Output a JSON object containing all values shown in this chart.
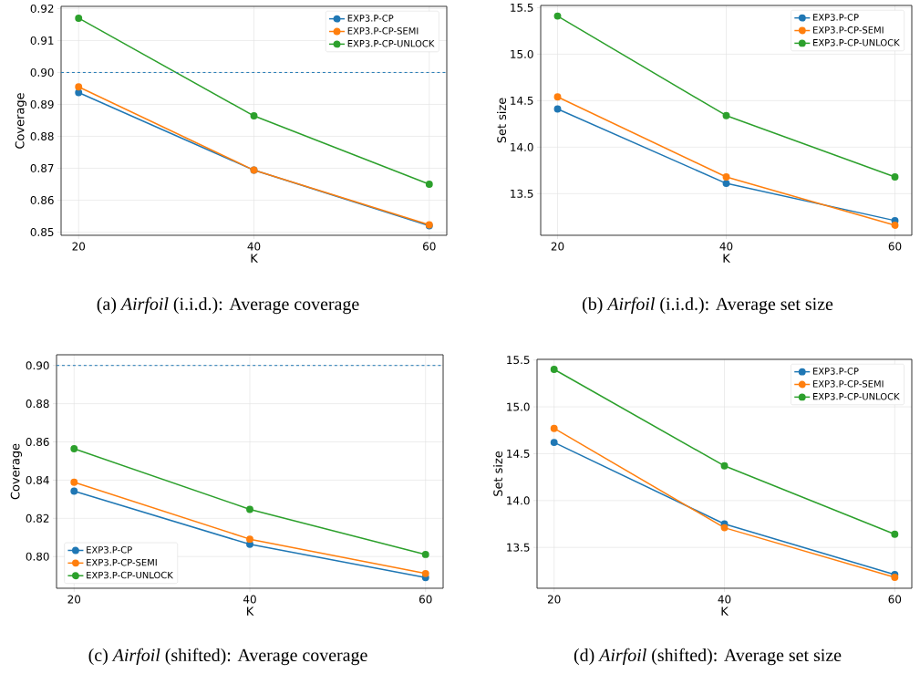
{
  "chart_data": [
    {
      "type": "line",
      "xlabel": "K",
      "ylabel": "Coverage",
      "x": [
        20,
        40,
        60
      ],
      "xlim": [
        18,
        62
      ],
      "xticks": [
        20,
        40,
        60
      ],
      "ylim": [
        0.849,
        0.9207
      ],
      "yticks": [
        0.85,
        0.86,
        0.87,
        0.88,
        0.89,
        {
          "value": 0.9,
          "label": "0.90"
        },
        0.91,
        0.92
      ],
      "grid": true,
      "legend": "top right",
      "marker": "circle",
      "line_style": "solid",
      "series": [
        {
          "name": "EXP3.P-CP",
          "color": "#1f77b4",
          "values": [
            0.8937,
            0.8694,
            0.852
          ]
        },
        {
          "name": "EXP3.P-CP-SEMI",
          "color": "#ff7f0e",
          "values": [
            0.8955,
            0.8694,
            0.8523
          ]
        },
        {
          "name": "EXP3.P-CP-UNLOCK",
          "color": "#2ca02c",
          "values": [
            0.917,
            0.8864,
            0.865
          ]
        }
      ],
      "ref_lines": [
        {
          "axis": "y",
          "value": 0.9,
          "color": "#1f77b4",
          "line_style": "dashed"
        }
      ],
      "annotations": [
        "(a) *Airfoil* (i.i.d.): Average coverage"
      ]
    },
    {
      "type": "line",
      "xlabel": "K",
      "ylabel": "Set size",
      "x": [
        20,
        40,
        60
      ],
      "xlim": [
        18,
        62
      ],
      "xticks": [
        20,
        40,
        60
      ],
      "ylim": [
        13.052,
        15.524
      ],
      "yticks": [
        {
          "value": 13.5,
          "label": "13.5"
        },
        {
          "value": 14,
          "label": "14.0"
        },
        {
          "value": 14.5,
          "label": "14.5"
        },
        {
          "value": 15,
          "label": "15.0"
        },
        {
          "value": 15.5,
          "label": "15.5"
        }
      ],
      "grid": true,
      "legend": "top right",
      "marker": "circle",
      "line_style": "solid",
      "series": [
        {
          "name": "EXP3.P-CP",
          "color": "#1f77b4",
          "values": [
            14.41,
            13.61,
            13.21
          ]
        },
        {
          "name": "EXP3.P-CP-SEMI",
          "color": "#ff7f0e",
          "values": [
            14.54,
            13.68,
            13.16
          ]
        },
        {
          "name": "EXP3.P-CP-UNLOCK",
          "color": "#2ca02c",
          "values": [
            15.41,
            14.34,
            13.68
          ]
        }
      ],
      "annotations": [
        "(b) *Airfoil* (i.i.d.): Average set size"
      ]
    },
    {
      "type": "line",
      "xlabel": "K",
      "ylabel": "Coverage",
      "x": [
        20,
        40,
        60
      ],
      "xlim": [
        18,
        62
      ],
      "xticks": [
        20,
        40,
        60
      ],
      "ylim": [
        0.7834,
        0.9056
      ],
      "yticks": [
        {
          "value": 0.8,
          "label": "0.80"
        },
        0.82,
        0.84,
        0.86,
        0.88,
        {
          "value": 0.9,
          "label": "0.90"
        }
      ],
      "grid": true,
      "legend": "bottom left",
      "marker": "circle",
      "line_style": "solid",
      "series": [
        {
          "name": "EXP3.P-CP",
          "color": "#1f77b4",
          "values": [
            0.8342,
            0.8064,
            0.789
          ]
        },
        {
          "name": "EXP3.P-CP-SEMI",
          "color": "#ff7f0e",
          "values": [
            0.8389,
            0.8091,
            0.7911
          ]
        },
        {
          "name": "EXP3.P-CP-UNLOCK",
          "color": "#2ca02c",
          "values": [
            0.8564,
            0.8247,
            0.8011
          ]
        }
      ],
      "ref_lines": [
        {
          "axis": "y",
          "value": 0.9,
          "color": "#1f77b4",
          "line_style": "dashed"
        }
      ],
      "annotations": [
        "(c) *Airfoil* (shifted): Average coverage"
      ]
    },
    {
      "type": "line",
      "xlabel": "K",
      "ylabel": "Set size",
      "x": [
        20,
        40,
        60
      ],
      "xlim": [
        18,
        62
      ],
      "xticks": [
        20,
        40,
        60
      ],
      "ylim": [
        13.064,
        15.507
      ],
      "yticks": [
        {
          "value": 13.5,
          "label": "13.5"
        },
        {
          "value": 14,
          "label": "14.0"
        },
        {
          "value": 14.5,
          "label": "14.5"
        },
        {
          "value": 15,
          "label": "15.0"
        },
        {
          "value": 15.5,
          "label": "15.5"
        }
      ],
      "grid": true,
      "legend": "top right",
      "marker": "circle",
      "line_style": "solid",
      "series": [
        {
          "name": "EXP3.P-CP",
          "color": "#1f77b4",
          "values": [
            14.62,
            13.75,
            13.21
          ]
        },
        {
          "name": "EXP3.P-CP-SEMI",
          "color": "#ff7f0e",
          "values": [
            14.77,
            13.71,
            13.18
          ]
        },
        {
          "name": "EXP3.P-CP-UNLOCK",
          "color": "#2ca02c",
          "values": [
            15.4,
            14.37,
            13.64
          ]
        }
      ],
      "annotations": [
        "(d) *Airfoil* (shifted): Average set size"
      ]
    }
  ]
}
